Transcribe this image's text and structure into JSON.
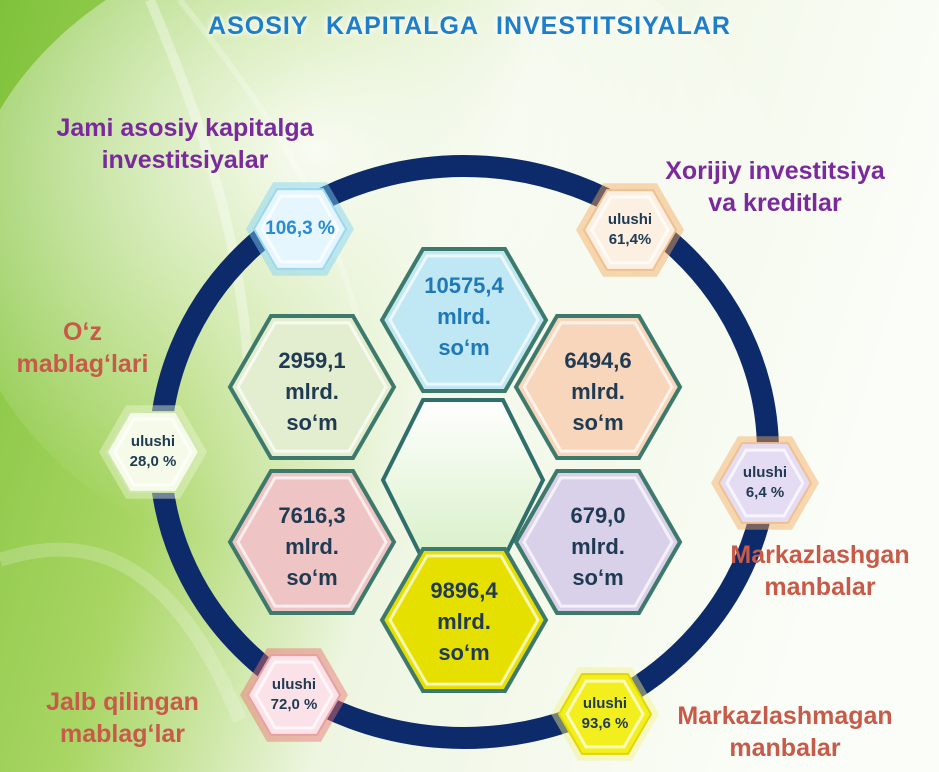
{
  "title": "ASOSIY  KAPITALGA  INVESTITSIYALAR",
  "labels": {
    "total": [
      "Jami asosiy kapitalga",
      "investitsiyalar"
    ],
    "foreign": [
      "Xorijiy investitsiya",
      "va kreditlar"
    ],
    "own": [
      "O‘z",
      "mablag‘lari"
    ],
    "centralized": [
      "Markazlashgan",
      "manbalar"
    ],
    "attracted": [
      "Jalb qilingan",
      "mablag‘lar"
    ],
    "decentralized": [
      "Markazlashmagan",
      "manbalar"
    ]
  },
  "hexagons": {
    "total": [
      "10575,4",
      "mlrd.",
      "so‘m"
    ],
    "own": [
      "2959,1",
      "mlrd.",
      "so‘m"
    ],
    "foreign": [
      "6494,6",
      "mlrd.",
      "so‘m"
    ],
    "attracted": [
      "7616,3",
      "mlrd.",
      "so‘m"
    ],
    "centralized": [
      "679,0",
      "mlrd.",
      "so‘m"
    ],
    "decentralized": [
      "9896,4",
      "mlrd.",
      "so‘m"
    ]
  },
  "shares": {
    "total": "106,3 %",
    "foreign": [
      "ulushi",
      "61,4%"
    ],
    "own": [
      "ulushi",
      "28,0 %"
    ],
    "centralized": [
      "ulushi",
      "6,4 %"
    ],
    "attracted": [
      "ulushi",
      "72,0 %"
    ],
    "decentralized": [
      "ulushi",
      "93,6 %"
    ]
  },
  "colors": {
    "title": "#1e7fc8",
    "label_purple": "#7a2a9c",
    "label_red": "#c75a48",
    "ring": "#0d2a6b",
    "hex_total": "#bfe8f4",
    "hex_own": "#e3edcf",
    "hex_foreign": "#f7d6bb",
    "hex_attracted": "#eec4c4",
    "hex_centralized": "#d9d0ea",
    "hex_decentralized": "#e6e000"
  }
}
